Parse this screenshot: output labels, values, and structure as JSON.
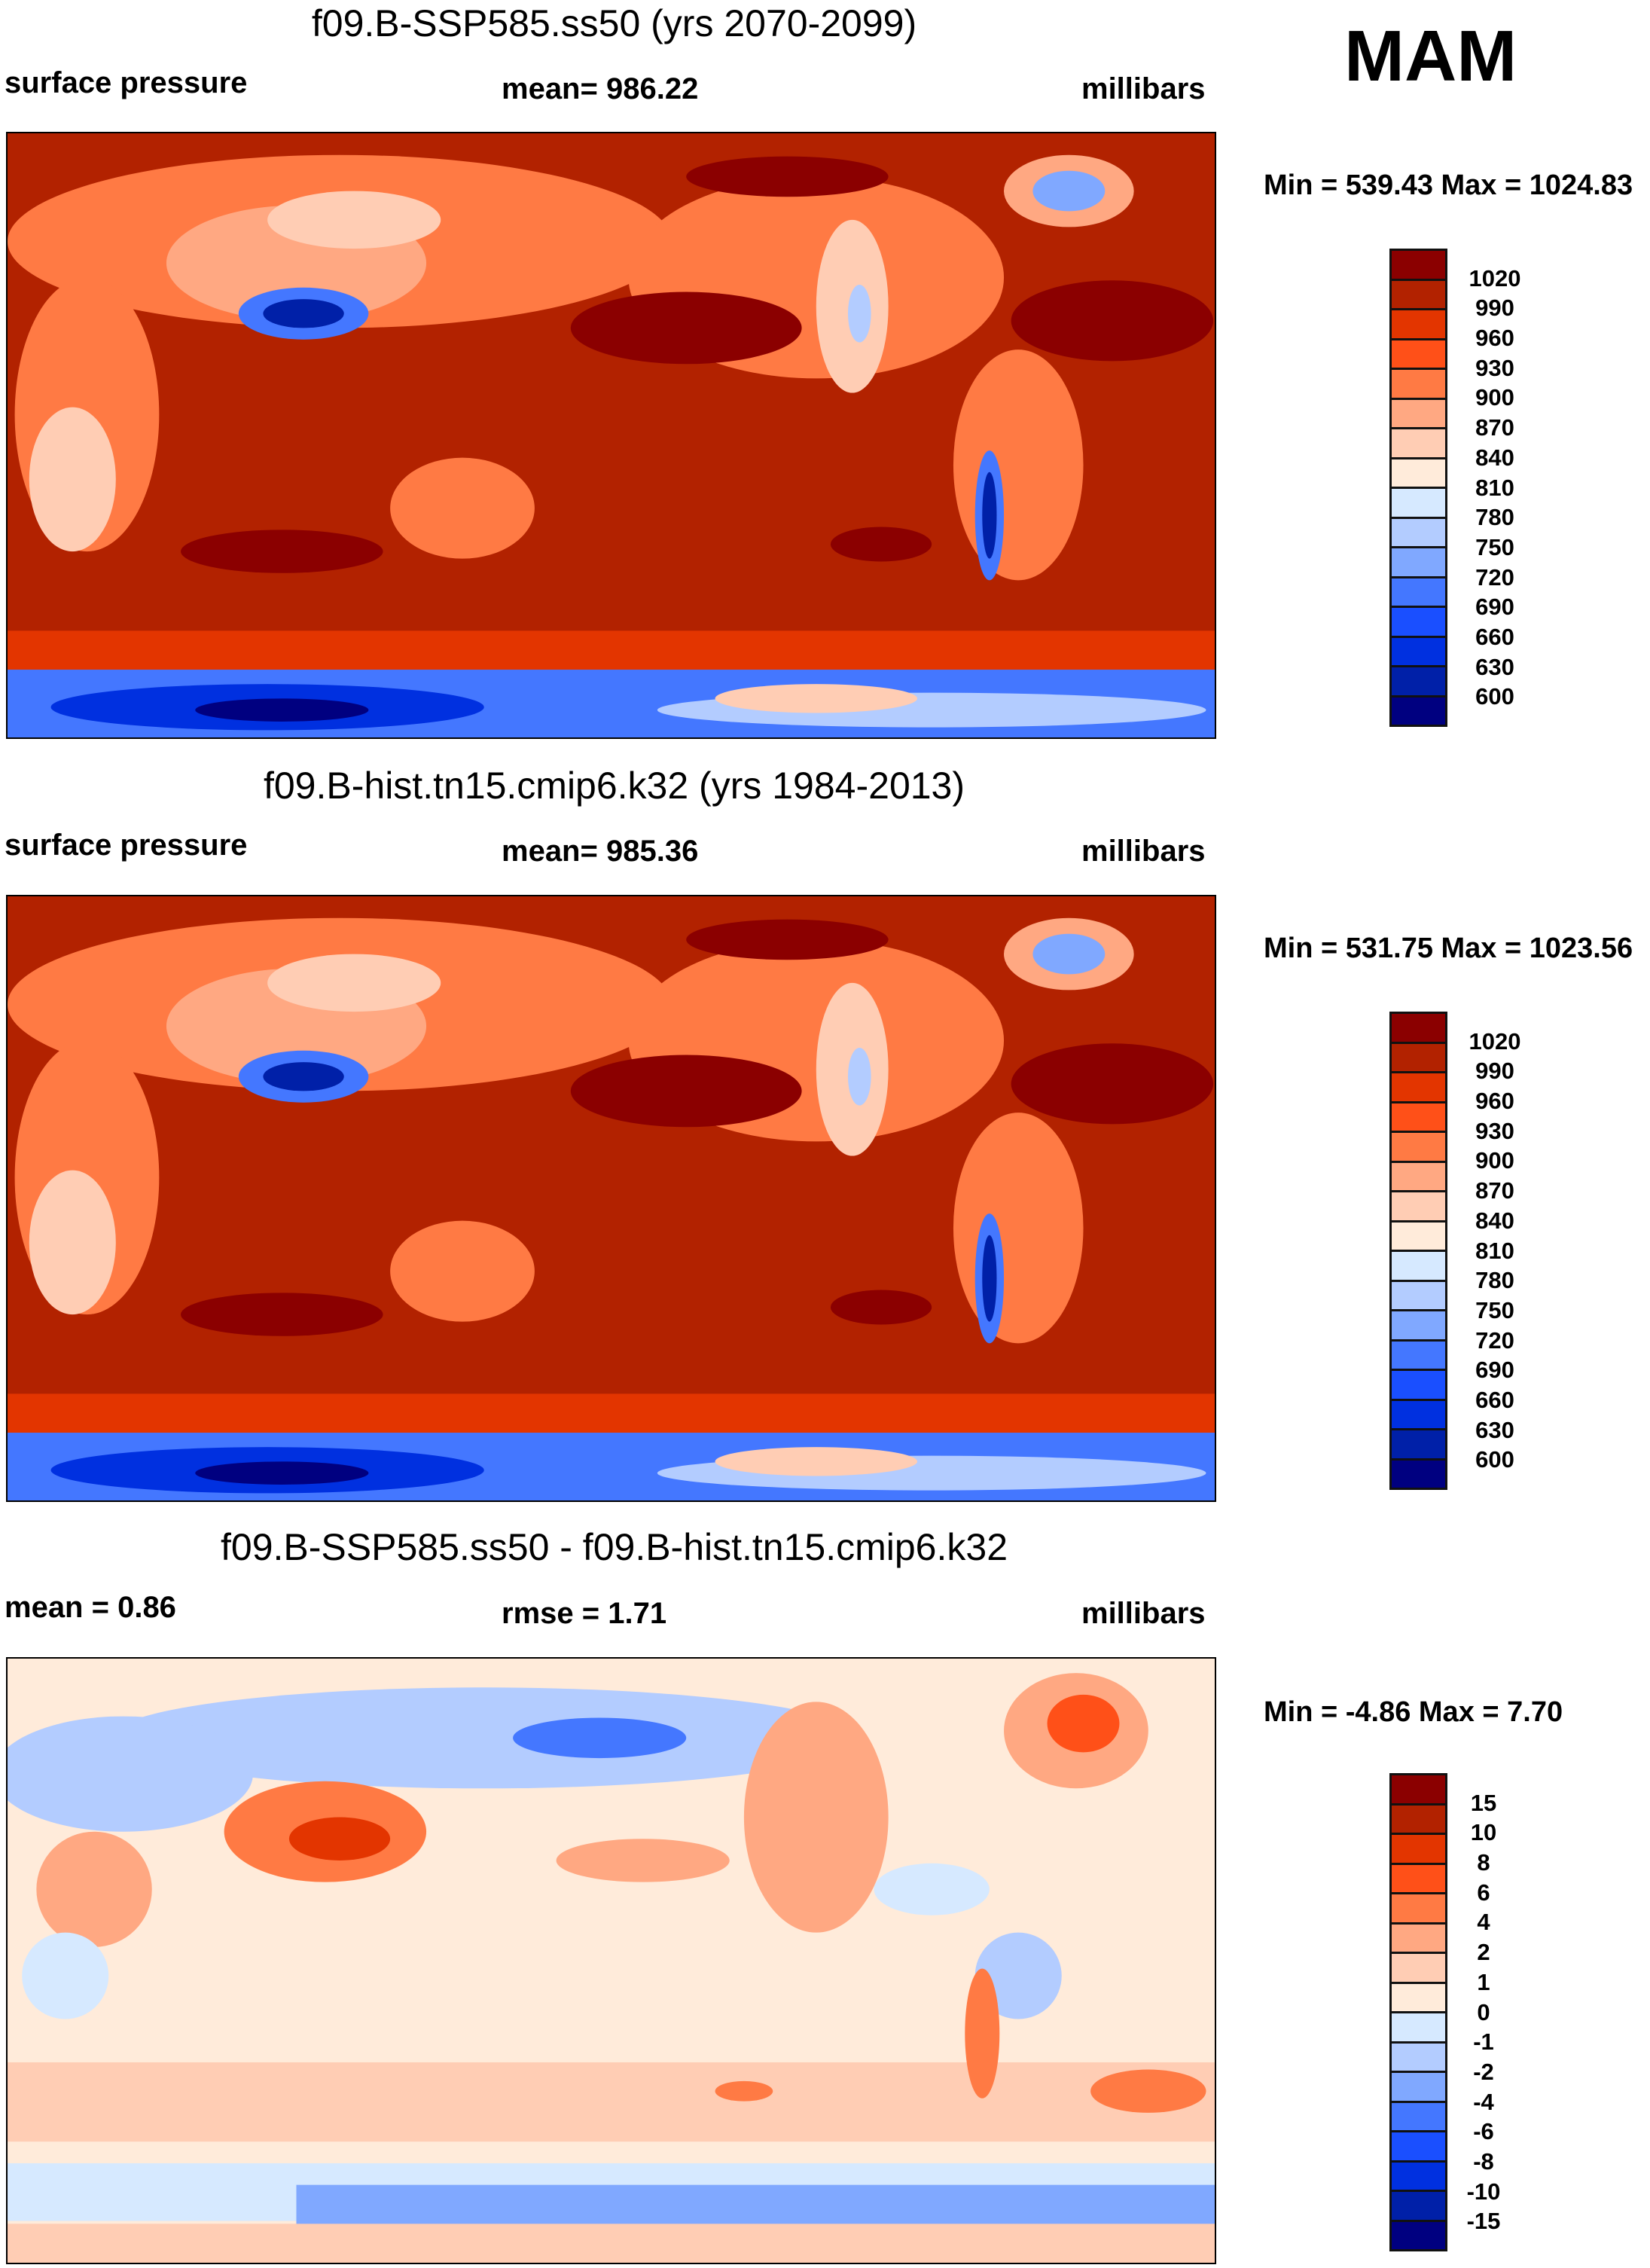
{
  "season": "MAM",
  "chart_data": [
    {
      "type": "heatmap",
      "title": "f09.B-SSP585.ss50 (yrs 2070-2099)",
      "left_label": "surface pressure",
      "center_label": "mean= 986.22",
      "units": "millibars",
      "minmax": "Min = 539.43 Max = 1024.83",
      "colorbar_labels": [
        "1020",
        "990",
        "960",
        "930",
        "900",
        "870",
        "840",
        "810",
        "780",
        "750",
        "720",
        "690",
        "660",
        "630",
        "600"
      ]
    },
    {
      "type": "heatmap",
      "title": "f09.B-hist.tn15.cmip6.k32 (yrs 1984-2013)",
      "left_label": "surface pressure",
      "center_label": "mean= 985.36",
      "units": "millibars",
      "minmax": "Min = 531.75 Max = 1023.56",
      "colorbar_labels": [
        "1020",
        "990",
        "960",
        "930",
        "900",
        "870",
        "840",
        "810",
        "780",
        "750",
        "720",
        "690",
        "660",
        "630",
        "600"
      ]
    },
    {
      "type": "heatmap",
      "title": "f09.B-SSP585.ss50 - f09.B-hist.tn15.cmip6.k32",
      "left_label": "mean =   0.86",
      "center_label": "rmse =   1.71",
      "units": "millibars",
      "minmax": "Min =  -4.86 Max =   7.70",
      "colorbar_labels": [
        "15",
        "10",
        "8",
        "6",
        "4",
        "2",
        "1",
        "0",
        "-1",
        "-2",
        "-4",
        "-6",
        "-8",
        "-10",
        "-15"
      ]
    }
  ],
  "colors": [
    "#8B0000",
    "#B22200",
    "#E33500",
    "#FF5018",
    "#FF7A44",
    "#FFA882",
    "#FFCDB4",
    "#FFEBDA",
    "#D6E9FF",
    "#B3CCFF",
    "#80A8FF",
    "#4477FF",
    "#1A4FFF",
    "#0030E0",
    "#0020A8",
    "#000080"
  ]
}
